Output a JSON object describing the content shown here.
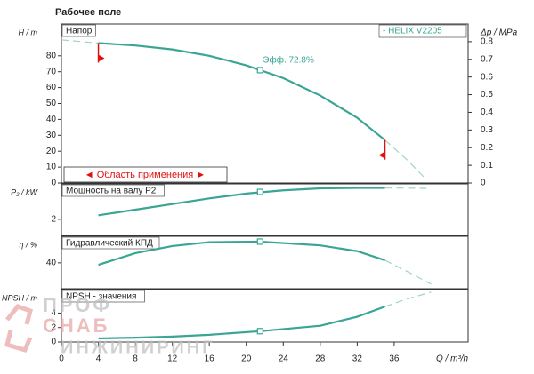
{
  "title": "Рабочее поле",
  "watermark": [
    "ПРОФ",
    "СНАБ",
    "ИНЖИНИРИНГ"
  ],
  "chart_data": [
    {
      "type": "line",
      "label": "Напор",
      "ylabel": "H / m",
      "y2label": "Δp / MPa",
      "xlim": [
        0,
        44
      ],
      "ylim": [
        0,
        100
      ],
      "yticks": [
        0,
        10,
        20,
        30,
        40,
        50,
        60,
        70,
        80
      ],
      "y2lim": [
        0,
        0.9
      ],
      "y2ticks": [
        0,
        0.1,
        0.2,
        0.3,
        0.4,
        0.5,
        0.6,
        0.7,
        0.8
      ],
      "legend": "- HELIX V2205",
      "annotation": "Эфф. 72.8%",
      "range": {
        "label": "◄ Область применения ►",
        "x": [
          4,
          35
        ]
      },
      "operating_point": {
        "x": 21.5,
        "value": 71
      },
      "series": [
        {
          "name": "HELIX V2205",
          "color": "#3aa595",
          "x": [
            4,
            8,
            12,
            16,
            20,
            24,
            28,
            32,
            35
          ],
          "values": [
            88,
            86.5,
            84,
            80,
            74,
            66,
            55,
            41,
            27
          ]
        },
        {
          "color": "#9fd3cb",
          "dash": true,
          "x": [
            0,
            4
          ],
          "values": [
            90,
            88
          ]
        },
        {
          "color": "#9fd3cb",
          "dash": true,
          "x": [
            35,
            37.5,
            39.5
          ],
          "values": [
            27,
            14,
            2
          ]
        }
      ]
    },
    {
      "type": "line",
      "label": "Мощность на валу P2",
      "ylabel": "P₂ / kW",
      "xlim": [
        0,
        44
      ],
      "ylim": [
        0,
        6.4
      ],
      "yticks": [
        2
      ],
      "operating_point": {
        "x": 21.5,
        "value": 5.4
      },
      "series": [
        {
          "color": "#3aa595",
          "x": [
            4,
            8,
            12,
            16,
            20,
            24,
            28,
            32,
            35
          ],
          "values": [
            2.5,
            3.2,
            3.9,
            4.6,
            5.2,
            5.6,
            5.85,
            5.9,
            5.9
          ]
        },
        {
          "color": "#9fd3cb",
          "dash": true,
          "x": [
            35,
            39.5
          ],
          "values": [
            5.9,
            5.85
          ]
        }
      ]
    },
    {
      "type": "line",
      "label": "Гидравлический КПД",
      "ylabel": "η / %",
      "xlim": [
        0,
        44
      ],
      "ylim": [
        0,
        81
      ],
      "yticks": [
        40
      ],
      "operating_point": {
        "x": 21.5,
        "value": 72.8
      },
      "series": [
        {
          "color": "#3aa595",
          "x": [
            4,
            8,
            12,
            16,
            21.5,
            28,
            32,
            35
          ],
          "values": [
            37,
            55,
            66,
            72,
            72.8,
            67,
            58,
            44
          ]
        },
        {
          "color": "#9fd3cb",
          "dash": true,
          "x": [
            35,
            37.5,
            40
          ],
          "values": [
            44,
            26,
            7
          ]
        }
      ]
    },
    {
      "type": "line",
      "label": "NPSH - значения",
      "ylabel": "NPSH / m",
      "xlim": [
        0,
        44
      ],
      "ylim": [
        0,
        7.25
      ],
      "yticks": [
        0,
        2,
        4
      ],
      "xlabel": "Q / m³/h",
      "xticks": [
        0,
        4,
        8,
        12,
        16,
        20,
        24,
        28,
        32,
        36
      ],
      "operating_point": {
        "x": 21.5,
        "value": 1.5
      },
      "series": [
        {
          "color": "#3aa595",
          "x": [
            4,
            8,
            12,
            16,
            21.5,
            28,
            32,
            35
          ],
          "values": [
            0.5,
            0.6,
            0.75,
            1,
            1.5,
            2.25,
            3.5,
            4.9
          ]
        },
        {
          "color": "#9fd3cb",
          "dash": true,
          "x": [
            35,
            37.5,
            40
          ],
          "values": [
            4.9,
            6,
            6.9
          ]
        }
      ]
    }
  ]
}
